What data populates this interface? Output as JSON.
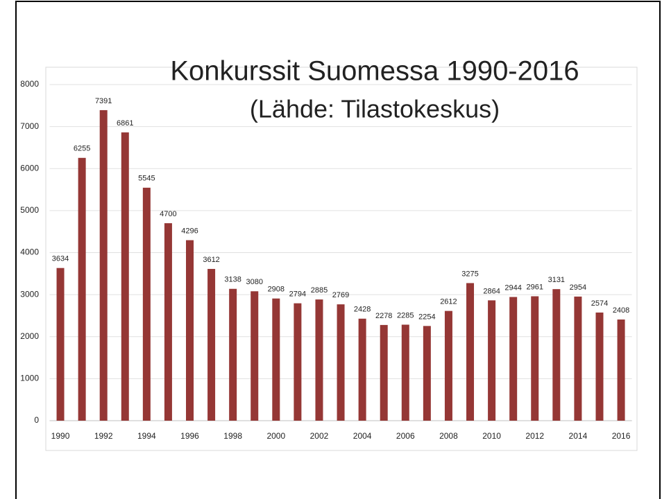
{
  "chart_data": {
    "type": "bar",
    "title": "Konkurssit Suomessa 1990-2016",
    "subtitle": "(Lähde: Tilastokeskus)",
    "categories": [
      "1990",
      null,
      "1992",
      null,
      "1994",
      null,
      "1996",
      null,
      "1998",
      null,
      "2000",
      null,
      "2002",
      null,
      "2004",
      null,
      "2006",
      null,
      "2008",
      null,
      "2010",
      null,
      "2012",
      null,
      "2014",
      null,
      "2016"
    ],
    "values": [
      3634,
      6255,
      7391,
      6861,
      5545,
      4700,
      4296,
      3612,
      3138,
      3080,
      2908,
      2794,
      2885,
      2769,
      2428,
      2278,
      2285,
      2254,
      2612,
      3275,
      2864,
      2944,
      2961,
      3131,
      2954,
      2574,
      2408
    ],
    "color": "#953735",
    "ylim": [
      0,
      8000
    ],
    "yticks": [
      0,
      1000,
      2000,
      3000,
      4000,
      5000,
      6000,
      7000,
      8000
    ],
    "grid": true
  }
}
